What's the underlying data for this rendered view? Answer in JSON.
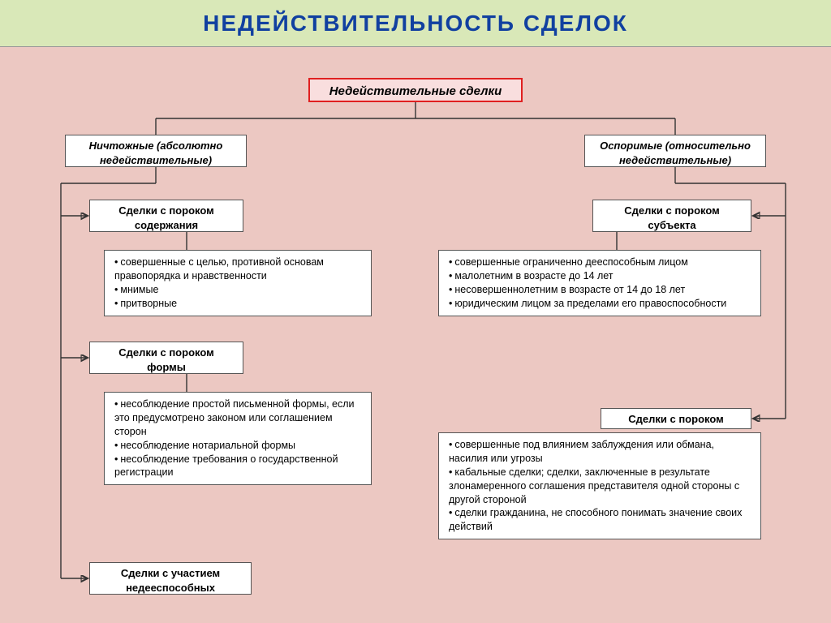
{
  "title": "НЕДЕЙСТВИТЕЛЬНОСТЬ  СДЕЛОК",
  "root": "Недействительные  сделки",
  "left": {
    "type": "Ничтожные (абсолютно недействительные)",
    "cat1": "Сделки с пороком содержания",
    "list1": [
      "совершенные с целью, противной основам правопорядка и нравственности",
      "мнимые",
      "притворные"
    ],
    "cat2": "Сделки с пороком формы",
    "list2": [
      "несоблюдение простой письменной формы, если это предусмотрено законом  или  соглашением сторон",
      "несоблюдение нотариальной формы",
      "несоблюдение требования о государственной регистрации"
    ],
    "cat3": "Сделки с участием недееспособных"
  },
  "right": {
    "type": "Оспоримые (относительно недействительные)",
    "cat1": "Сделки с пороком субъекта",
    "list1": [
      "совершенные ограниченно дееспособным лицом",
      "малолетним в возрасте до 14 лет",
      "несовершеннолетним в возрасте от 14 до 18 лет",
      "юридическим лицом за пределами его правоспособности"
    ],
    "cat2": "Сделки с пороком",
    "list2": [
      "совершенные под влиянием заблуждения или обмана, насилия или угрозы",
      "кабальные сделки; сделки, заключенные в результате злонамеренного соглашения представителя одной стороны с другой стороной",
      "сделки гражданина, не способного понимать значение своих действий"
    ]
  },
  "colors": {
    "bg": "#ecc8c2",
    "header_bg": "#d9e8b8",
    "title_color": "#1140a0",
    "root_border": "#e02020",
    "root_bg": "#f9dede"
  }
}
